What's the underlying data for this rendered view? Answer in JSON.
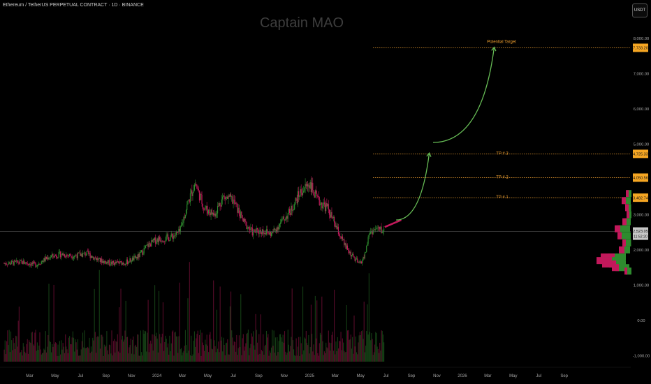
{
  "header": {
    "symbol_line": "Ethereum / TetherUS PERPETUAL CONTRACT · 1D · BINANCE",
    "unit_button": "USDT",
    "watermark": "Captain MAO"
  },
  "colors": {
    "background": "#000000",
    "up": "#2e8b2e",
    "down": "#c2185b",
    "level_line": "#f0a030",
    "arrow": "#66bb55",
    "tag_bg": "#f5a623",
    "current_tag_bg": "#c7c7c7"
  },
  "chart_data": {
    "type": "line",
    "title": "Ethereum / TetherUS PERPETUAL CONTRACT · 1D · BINANCE",
    "y_scale": "linear",
    "ylim": [
      -1000,
      8000
    ],
    "y_ticks": [
      "8,000.00",
      "7,000.00",
      "6,000.00",
      "5,000.00",
      "3,000.00",
      "2,000.00",
      "1,000.00",
      "0.00",
      "-1,000.00"
    ],
    "y_tick_values": [
      8000,
      7000,
      6000,
      5000,
      3000,
      2000,
      1000,
      0,
      -1000
    ],
    "x_ticks": [
      "Mar",
      "May",
      "Jul",
      "Sep",
      "Nov",
      "2024",
      "Mar",
      "May",
      "Jul",
      "Sep",
      "Nov",
      "2025",
      "Mar",
      "May",
      "Jul",
      "Sep",
      "Nov",
      "2026",
      "Mar",
      "May",
      "Jul",
      "Sep"
    ],
    "x_tick_months": [
      2,
      4,
      6,
      8,
      10,
      12,
      14,
      16,
      18,
      20,
      22,
      24,
      26,
      28,
      30,
      32,
      34,
      36,
      38,
      40,
      42,
      44
    ],
    "price_path": [
      {
        "m": 0.0,
        "p": 1620
      },
      {
        "m": 1.5,
        "p": 1650
      },
      {
        "m": 2.5,
        "p": 1580
      },
      {
        "m": 3.5,
        "p": 1800
      },
      {
        "m": 4.5,
        "p": 1880
      },
      {
        "m": 5.5,
        "p": 1830
      },
      {
        "m": 6.5,
        "p": 1900
      },
      {
        "m": 7.5,
        "p": 1700
      },
      {
        "m": 8.5,
        "p": 1620
      },
      {
        "m": 9.5,
        "p": 1640
      },
      {
        "m": 10.5,
        "p": 1800
      },
      {
        "m": 11.2,
        "p": 2100
      },
      {
        "m": 12.0,
        "p": 2300
      },
      {
        "m": 13.0,
        "p": 2350
      },
      {
        "m": 13.8,
        "p": 2500
      },
      {
        "m": 14.4,
        "p": 3300
      },
      {
        "m": 15.0,
        "p": 3900
      },
      {
        "m": 15.7,
        "p": 3200
      },
      {
        "m": 16.5,
        "p": 3000
      },
      {
        "m": 17.2,
        "p": 3500
      },
      {
        "m": 18.0,
        "p": 3400
      },
      {
        "m": 18.8,
        "p": 2800
      },
      {
        "m": 19.5,
        "p": 2500
      },
      {
        "m": 20.3,
        "p": 2550
      },
      {
        "m": 21.0,
        "p": 2450
      },
      {
        "m": 21.8,
        "p": 2800
      },
      {
        "m": 22.5,
        "p": 3100
      },
      {
        "m": 23.2,
        "p": 3600
      },
      {
        "m": 24.0,
        "p": 3900
      },
      {
        "m": 24.6,
        "p": 3400
      },
      {
        "m": 25.4,
        "p": 3200
      },
      {
        "m": 26.0,
        "p": 2700
      },
      {
        "m": 26.8,
        "p": 2100
      },
      {
        "m": 27.4,
        "p": 1800
      },
      {
        "m": 27.9,
        "p": 1600
      },
      {
        "m": 28.3,
        "p": 1800
      },
      {
        "m": 28.7,
        "p": 2500
      },
      {
        "m": 29.3,
        "p": 2600
      },
      {
        "m": 29.9,
        "p": 2523.05
      }
    ],
    "levels": [
      {
        "label": "Potential Target",
        "value": 7733.2,
        "tag": "7,733.20"
      },
      {
        "label": "TP # 3",
        "value": 4725.33,
        "tag": "4,725.33"
      },
      {
        "label": "TP # 2",
        "value": 4050.56,
        "tag": "4,050.56"
      },
      {
        "label": "TP # 1",
        "value": 3482.74,
        "tag": "3,482.74"
      }
    ],
    "current_price": {
      "value": 2523.05,
      "tag": "2,523.05",
      "countdown": "11:52:20"
    },
    "projection": {
      "bar_from_month": 29.9,
      "bar_to_month": 31.2,
      "bar_from_price": 2650,
      "bar_to_price": 2850,
      "arrow1": [
        {
          "m": 30.8,
          "p": 2850
        },
        {
          "m": 33.4,
          "p": 4750
        }
      ],
      "arrow2": [
        {
          "m": 33.7,
          "p": 5050
        },
        {
          "m": 38.5,
          "p": 7750
        }
      ]
    },
    "volume_profile": [
      {
        "p": 3600,
        "up": 6,
        "down": 4
      },
      {
        "p": 3400,
        "up": 10,
        "down": 6
      },
      {
        "p": 3200,
        "up": 6,
        "down": 5
      },
      {
        "p": 3000,
        "up": 5,
        "down": 4
      },
      {
        "p": 2800,
        "up": 9,
        "down": 6
      },
      {
        "p": 2600,
        "up": 18,
        "down": 8
      },
      {
        "p": 2400,
        "up": 16,
        "down": 6
      },
      {
        "p": 2200,
        "up": 10,
        "down": 5
      },
      {
        "p": 2000,
        "up": 12,
        "down": 8
      },
      {
        "p": 1800,
        "up": 26,
        "down": 20
      },
      {
        "p": 1700,
        "up": 30,
        "down": 22
      },
      {
        "p": 1600,
        "up": 24,
        "down": 20
      },
      {
        "p": 1500,
        "up": 20,
        "down": 10
      },
      {
        "p": 1400,
        "up": 8,
        "down": 4
      }
    ]
  }
}
